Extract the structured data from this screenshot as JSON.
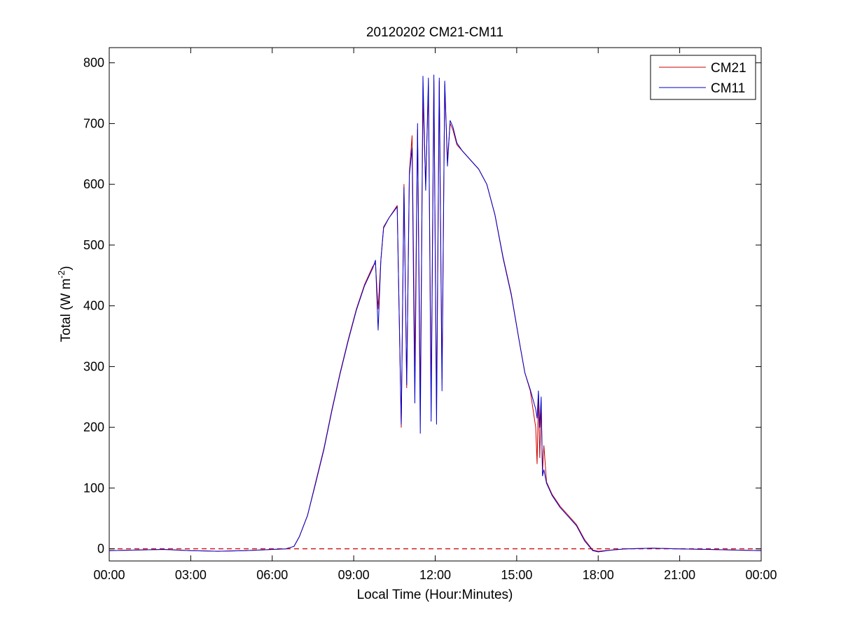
{
  "chart_data": {
    "type": "line",
    "title": "20120202 CM21-CM11",
    "xlabel": "Local Time (Hour:Minutes)",
    "ylabel": {
      "prefix": "Total (W m",
      "superscript": "-2",
      "suffix": ")"
    },
    "xlim": [
      0,
      24
    ],
    "ylim": [
      -20,
      825
    ],
    "x_ticks": [
      0,
      3,
      6,
      9,
      12,
      15,
      18,
      21,
      24
    ],
    "x_tick_labels": [
      "00:00",
      "03:00",
      "06:00",
      "09:00",
      "12:00",
      "15:00",
      "18:00",
      "21:00",
      "00:00"
    ],
    "y_ticks": [
      0,
      100,
      200,
      300,
      400,
      500,
      600,
      700,
      800
    ],
    "y_tick_labels": [
      "0",
      "100",
      "200",
      "300",
      "400",
      "500",
      "600",
      "700",
      "800"
    ],
    "grid": false,
    "legend": "top-right",
    "reference_line": {
      "y": 0,
      "style": "dashed",
      "color": "#cc0000"
    },
    "series": [
      {
        "name": "CM21",
        "color": "#cc0000",
        "x": [
          0,
          1,
          2,
          3,
          4,
          5,
          6,
          6.5,
          6.8,
          7.0,
          7.3,
          7.6,
          7.9,
          8.2,
          8.5,
          8.8,
          9.1,
          9.4,
          9.7,
          9.8,
          9.9,
          10.0,
          10.1,
          10.3,
          10.6,
          10.75,
          10.85,
          10.95,
          11.05,
          11.15,
          11.25,
          11.35,
          11.45,
          11.55,
          11.65,
          11.75,
          11.85,
          11.95,
          12.05,
          12.15,
          12.25,
          12.35,
          12.45,
          12.55,
          12.65,
          12.8,
          13.0,
          13.3,
          13.6,
          13.9,
          14.2,
          14.5,
          14.8,
          15.1,
          15.3,
          15.5,
          15.7,
          15.75,
          15.8,
          15.85,
          15.9,
          15.95,
          16.0,
          16.1,
          16.3,
          16.6,
          16.9,
          17.2,
          17.5,
          17.8,
          18.0,
          18.5,
          19,
          20,
          21,
          22,
          23,
          24
        ],
        "y": [
          -3,
          -2,
          -1,
          -3,
          -4,
          -3,
          -1,
          0,
          4,
          20,
          55,
          110,
          165,
          230,
          290,
          345,
          395,
          435,
          465,
          470,
          395,
          475,
          530,
          545,
          565,
          200,
          600,
          265,
          620,
          680,
          300,
          690,
          245,
          740,
          600,
          760,
          250,
          770,
          230,
          770,
          280,
          765,
          640,
          700,
          690,
          665,
          655,
          640,
          625,
          600,
          550,
          480,
          420,
          340,
          290,
          260,
          200,
          140,
          255,
          150,
          240,
          125,
          170,
          110,
          90,
          70,
          55,
          40,
          15,
          -2,
          -4,
          -2,
          0,
          1,
          0,
          -1,
          -2,
          -3
        ]
      },
      {
        "name": "CM11",
        "color": "#0000cc",
        "x": [
          0,
          1,
          2,
          3,
          4,
          5,
          6,
          6.5,
          6.8,
          7.0,
          7.3,
          7.6,
          7.9,
          8.2,
          8.5,
          8.8,
          9.1,
          9.4,
          9.7,
          9.8,
          9.9,
          10.0,
          10.1,
          10.3,
          10.6,
          10.75,
          10.85,
          10.95,
          11.05,
          11.15,
          11.25,
          11.35,
          11.45,
          11.55,
          11.65,
          11.75,
          11.85,
          11.95,
          12.05,
          12.15,
          12.25,
          12.35,
          12.45,
          12.55,
          12.65,
          12.8,
          13.0,
          13.3,
          13.6,
          13.9,
          14.2,
          14.5,
          14.8,
          15.1,
          15.3,
          15.5,
          15.7,
          15.75,
          15.8,
          15.85,
          15.9,
          15.95,
          16.0,
          16.1,
          16.3,
          16.6,
          16.9,
          17.2,
          17.5,
          17.8,
          18.0,
          18.5,
          19,
          20,
          21,
          22,
          23,
          24
        ],
        "y": [
          -3,
          -2,
          -1,
          -3,
          -4,
          -3,
          -1,
          0,
          4,
          20,
          55,
          108,
          163,
          228,
          288,
          343,
          393,
          433,
          462,
          475,
          360,
          475,
          528,
          545,
          563,
          205,
          595,
          270,
          615,
          660,
          240,
          700,
          190,
          778,
          590,
          775,
          210,
          780,
          205,
          775,
          260,
          770,
          630,
          705,
          695,
          668,
          655,
          640,
          625,
          600,
          550,
          478,
          418,
          340,
          290,
          262,
          230,
          215,
          260,
          200,
          250,
          120,
          130,
          108,
          88,
          68,
          53,
          38,
          13,
          -3,
          -5,
          -2,
          0,
          1,
          0,
          -1,
          -2,
          -3
        ]
      }
    ]
  }
}
